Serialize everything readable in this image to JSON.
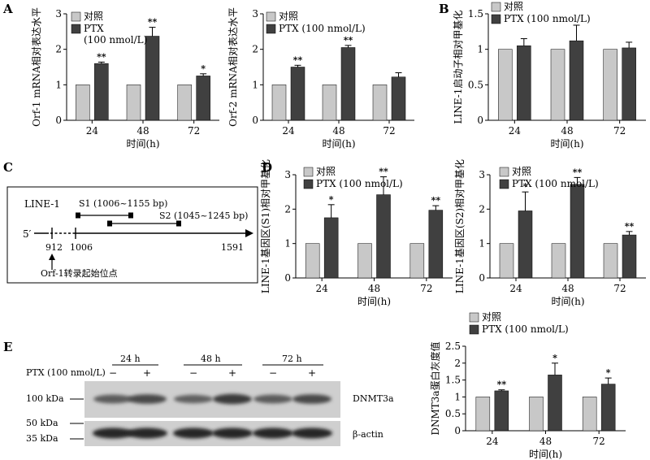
{
  "palette": {
    "control": "#c8c8c8",
    "ptx": "#404040",
    "axis": "#000000"
  },
  "panel_letters": {
    "A": "A",
    "B": "B",
    "C": "C",
    "D": "D",
    "E": "E"
  },
  "chart_data": [
    {
      "id": "A1",
      "panel": "A",
      "type": "bar",
      "ylabel": "Orf-1 mRNA相对表达水平",
      "xlabel": "时间(h)",
      "ylim": [
        0,
        3
      ],
      "yticks": [
        0,
        1,
        2,
        3
      ],
      "categories": [
        "24",
        "48",
        "72"
      ],
      "series": [
        {
          "name": "对照",
          "values": [
            1,
            1,
            1
          ],
          "errors": [
            0,
            0,
            0
          ],
          "sig": [
            "",
            "",
            ""
          ]
        },
        {
          "name": "PTX",
          "name_line2": "(100 nmol/L)",
          "values": [
            1.6,
            2.37,
            1.25
          ],
          "errors": [
            0.04,
            0.25,
            0.06
          ],
          "sig": [
            "**",
            "**",
            "*"
          ]
        }
      ]
    },
    {
      "id": "A2",
      "panel": "A",
      "type": "bar",
      "ylabel": "Orf-2 mRNA相对表达水平",
      "xlabel": "时间(h)",
      "ylim": [
        0,
        3
      ],
      "yticks": [
        0,
        1,
        2,
        3
      ],
      "categories": [
        "24",
        "48",
        "72"
      ],
      "series": [
        {
          "name": "对照",
          "values": [
            1,
            1,
            1
          ],
          "errors": [
            0,
            0,
            0
          ],
          "sig": [
            "",
            "",
            ""
          ]
        },
        {
          "name": "PTX (100 nmol/L)",
          "values": [
            1.5,
            2.05,
            1.22
          ],
          "errors": [
            0.05,
            0.06,
            0.12
          ],
          "sig": [
            "**",
            "**",
            ""
          ]
        }
      ]
    },
    {
      "id": "B",
      "panel": "B",
      "type": "bar",
      "ylabel": "LINE-1启动子相对甲基化",
      "xlabel": "时间(h)",
      "ylim": [
        0,
        1.5
      ],
      "yticks": [
        0,
        0.5,
        1.0,
        1.5
      ],
      "categories": [
        "24",
        "48",
        "72"
      ],
      "series": [
        {
          "name": "对照",
          "values": [
            1,
            1,
            1
          ],
          "errors": [
            0,
            0,
            0
          ],
          "sig": [
            "",
            "",
            ""
          ]
        },
        {
          "name": "PTX (100 nmol/L)",
          "values": [
            1.05,
            1.12,
            1.02
          ],
          "errors": [
            0.1,
            0.22,
            0.08
          ],
          "sig": [
            "",
            "",
            ""
          ]
        }
      ]
    },
    {
      "id": "D1",
      "panel": "D",
      "type": "bar",
      "ylabel": "LINE-1基因区(S1)相对甲基化",
      "xlabel": "时间(h)",
      "ylim": [
        0,
        3
      ],
      "yticks": [
        0,
        1,
        2,
        3
      ],
      "categories": [
        "24",
        "48",
        "72"
      ],
      "series": [
        {
          "name": "对照",
          "values": [
            1,
            1,
            1
          ],
          "errors": [
            0,
            0,
            0
          ],
          "sig": [
            "",
            "",
            ""
          ]
        },
        {
          "name": "PTX (100 nmol/L)",
          "values": [
            1.75,
            2.42,
            1.97
          ],
          "errors": [
            0.38,
            0.52,
            0.13
          ],
          "sig": [
            "*",
            "**",
            "**"
          ]
        }
      ]
    },
    {
      "id": "D2",
      "panel": "D",
      "type": "bar",
      "ylabel": "LINE-1基因区(S2)相对甲基化",
      "xlabel": "时间(h)",
      "ylim": [
        0,
        3
      ],
      "yticks": [
        0,
        1,
        2,
        3
      ],
      "categories": [
        "24",
        "48",
        "72"
      ],
      "series": [
        {
          "name": "对照",
          "values": [
            1,
            1,
            1
          ],
          "errors": [
            0,
            0,
            0
          ],
          "sig": [
            "",
            "",
            ""
          ]
        },
        {
          "name": "PTX (100 nmol/L)",
          "values": [
            1.95,
            2.72,
            1.25
          ],
          "errors": [
            0.55,
            0.2,
            0.1
          ],
          "sig": [
            "*",
            "**",
            "**"
          ]
        }
      ]
    },
    {
      "id": "E2",
      "panel": "E",
      "type": "bar",
      "ylabel": "DNMT3a蛋白灰度值",
      "xlabel": "时间(h)",
      "ylim": [
        0,
        2.5
      ],
      "yticks": [
        0,
        0.5,
        1.0,
        1.5,
        2.0,
        2.5
      ],
      "categories": [
        "24",
        "48",
        "72"
      ],
      "series": [
        {
          "name": "对照",
          "values": [
            1,
            1,
            1
          ],
          "errors": [
            0,
            0,
            0
          ],
          "sig": [
            "",
            "",
            ""
          ]
        },
        {
          "name": "PTX (100 nmol/L)",
          "values": [
            1.18,
            1.65,
            1.38
          ],
          "errors": [
            0.03,
            0.35,
            0.18
          ],
          "sig": [
            "**",
            "*",
            "*"
          ]
        }
      ]
    }
  ],
  "diagram": {
    "title": "LINE-1",
    "s1_label": "S1 (1006~1155 bp)",
    "s2_label": "S2 (1045~1245 bp)",
    "five_prime": "5′",
    "pos_912": "912",
    "pos_1006": "1006",
    "pos_1591": "1591",
    "tss_label": "Orf-1转录起始位点"
  },
  "blot": {
    "time_labels": [
      "24 h",
      "48 h",
      "72 h"
    ],
    "treatment_label": "PTX (100 nmol/L)",
    "lane_signs": [
      "−",
      "+",
      "−",
      "+",
      "−",
      "+"
    ],
    "mw_markers": [
      "100 kDa",
      "50 kDa",
      "35 kDa"
    ],
    "band_dnmt3a": "DNMT3a",
    "band_actin": "β-actin",
    "dnmt3a_intensity": [
      0.45,
      0.6,
      0.4,
      0.75,
      0.45,
      0.6
    ]
  }
}
